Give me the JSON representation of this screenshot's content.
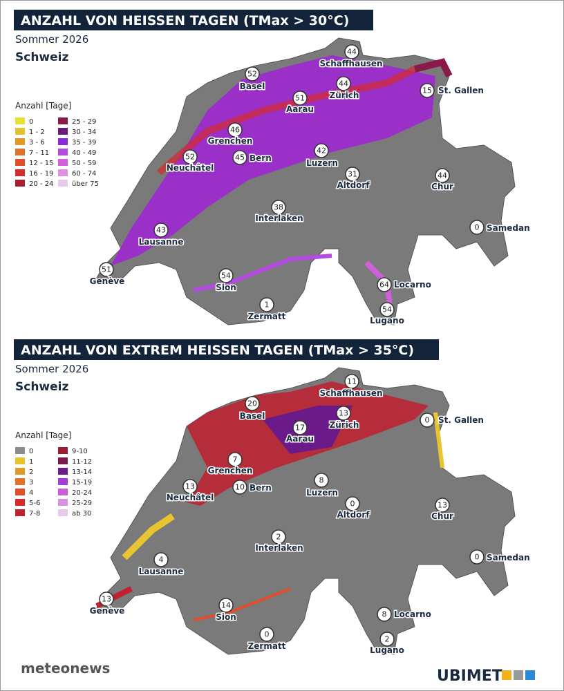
{
  "panels": [
    {
      "title": "ANZAHL VON HEISSEN TAGEN (TMax > 30°C)",
      "subtitle": "Sommer 2026",
      "region": "Schweiz",
      "legend": {
        "title": "Anzahl [Tage]",
        "entries": [
          {
            "label": "0",
            "color": "#e4e034"
          },
          {
            "label": "1 - 2",
            "color": "#e2c22e"
          },
          {
            "label": "3 - 6",
            "color": "#e09a2a"
          },
          {
            "label": "7 - 11",
            "color": "#e0722a"
          },
          {
            "label": "12 - 15",
            "color": "#e04e2c"
          },
          {
            "label": "16 - 19",
            "color": "#d42a2c"
          },
          {
            "label": "20 - 24",
            "color": "#a52030"
          },
          {
            "label": "25 - 29",
            "color": "#8a1a4a"
          },
          {
            "label": "30 - 34",
            "color": "#6b1a7a"
          },
          {
            "label": "35 - 39",
            "color": "#8a2ad8"
          },
          {
            "label": "40 - 49",
            "color": "#b44ae0"
          },
          {
            "label": "50 - 59",
            "color": "#d060d8"
          },
          {
            "label": "60 - 74",
            "color": "#e090e0"
          },
          {
            "label": "über 75",
            "color": "#e8c8e8"
          }
        ]
      },
      "cities": [
        {
          "name": "Schaffhausen",
          "value": 44
        },
        {
          "name": "Basel",
          "value": 52
        },
        {
          "name": "Aarau",
          "value": 51
        },
        {
          "name": "Zürich",
          "value": 44
        },
        {
          "name": "St. Gallen",
          "value": 15
        },
        {
          "name": "Grenchen",
          "value": 46
        },
        {
          "name": "Neuchâtel",
          "value": 52
        },
        {
          "name": "Bern",
          "value": 45
        },
        {
          "name": "Luzern",
          "value": 42
        },
        {
          "name": "Altdorf",
          "value": 31
        },
        {
          "name": "Chur",
          "value": 44
        },
        {
          "name": "Interlaken",
          "value": 38
        },
        {
          "name": "Samedan",
          "value": 0
        },
        {
          "name": "Lausanne",
          "value": 43
        },
        {
          "name": "Genève",
          "value": 51
        },
        {
          "name": "Sion",
          "value": 54
        },
        {
          "name": "Locarno",
          "value": 64
        },
        {
          "name": "Lugano",
          "value": 54
        },
        {
          "name": "Zermatt",
          "value": 1
        }
      ]
    },
    {
      "title": "ANZAHL VON EXTREM HEISSEN TAGEN (TMax > 35°C)",
      "subtitle": "Sommer 2026",
      "region": "Schweiz",
      "legend": {
        "title": "Anzahl [Tage]",
        "entries": [
          {
            "label": "0",
            "color": "#8c8c8c"
          },
          {
            "label": "1",
            "color": "#e8c42e"
          },
          {
            "label": "2",
            "color": "#e09a2a"
          },
          {
            "label": "3",
            "color": "#e0722a"
          },
          {
            "label": "4",
            "color": "#e04e2c"
          },
          {
            "label": "5-6",
            "color": "#d42a2c"
          },
          {
            "label": "7-8",
            "color": "#c02030"
          },
          {
            "label": "9-10",
            "color": "#9a1c30"
          },
          {
            "label": "11-12",
            "color": "#7a1a4a"
          },
          {
            "label": "13-14",
            "color": "#6b1a8a"
          },
          {
            "label": "15-19",
            "color": "#a040d8"
          },
          {
            "label": "20-24",
            "color": "#c860d8"
          },
          {
            "label": "25-29",
            "color": "#d890e0"
          },
          {
            "label": "ab 30",
            "color": "#e8c8e8"
          }
        ]
      },
      "cities": [
        {
          "name": "Schaffhausen",
          "value": 11
        },
        {
          "name": "Basel",
          "value": 20
        },
        {
          "name": "Aarau",
          "value": 17
        },
        {
          "name": "Zürich",
          "value": 13
        },
        {
          "name": "St. Gallen",
          "value": 0
        },
        {
          "name": "Grenchen",
          "value": 7
        },
        {
          "name": "Neuchâtel",
          "value": 13
        },
        {
          "name": "Bern",
          "value": 10
        },
        {
          "name": "Luzern",
          "value": 8
        },
        {
          "name": "Altdorf",
          "value": 0
        },
        {
          "name": "Chur",
          "value": 13
        },
        {
          "name": "Interlaken",
          "value": 2
        },
        {
          "name": "Samedan",
          "value": 0
        },
        {
          "name": "Lausanne",
          "value": 4
        },
        {
          "name": "Genève",
          "value": 13
        },
        {
          "name": "Sion",
          "value": 14
        },
        {
          "name": "Locarno",
          "value": 8
        },
        {
          "name": "Lugano",
          "value": 2
        },
        {
          "name": "Zermatt",
          "value": 0
        }
      ]
    }
  ],
  "footer": {
    "left": "meteonews",
    "right": "UBIMET"
  }
}
